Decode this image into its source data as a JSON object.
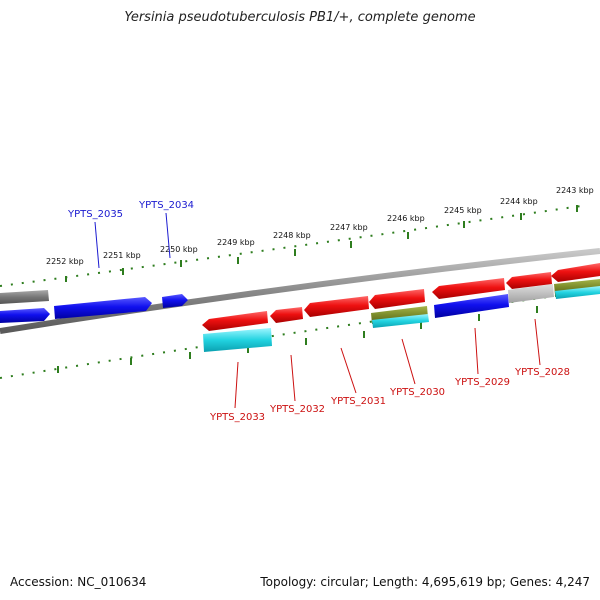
{
  "title": "Yersinia pseudotuberculosis PB1/+, complete genome",
  "footer": {
    "accession": "Accession: NC_010634",
    "summary": "Topology: circular; Length: 4,695,619 bp; Genes: 4,247"
  },
  "colors": {
    "forward_gene": "#1010ee",
    "reverse_gene": "#ee1111",
    "gray_gene": "#777777",
    "light_gray_gene": "#c0c0c0",
    "olive_feature": "#7a8b2a",
    "cyan_feature": "#22d3e0",
    "tick": "#2e7d1e",
    "backbone": "#8a8a8a",
    "forward_label": "#1a1ad0",
    "reverse_label": "#cc1111"
  },
  "ticks": {
    "outer": [
      {
        "label": "2252 kbp"
      },
      {
        "label": "2251 kbp"
      },
      {
        "label": "2250 kbp"
      },
      {
        "label": "2249 kbp"
      },
      {
        "label": "2248 kbp"
      },
      {
        "label": "2247 kbp"
      },
      {
        "label": "2246 kbp"
      },
      {
        "label": "2245 kbp"
      },
      {
        "label": "2244 kbp"
      },
      {
        "label": "2243 kbp"
      }
    ]
  },
  "gene_labels": {
    "forward": [
      "YPTS_2035",
      "YPTS_2034"
    ],
    "reverse": [
      "YPTS_2033",
      "YPTS_2032",
      "YPTS_2031",
      "YPTS_2030",
      "YPTS_2029",
      "YPTS_2028"
    ]
  }
}
